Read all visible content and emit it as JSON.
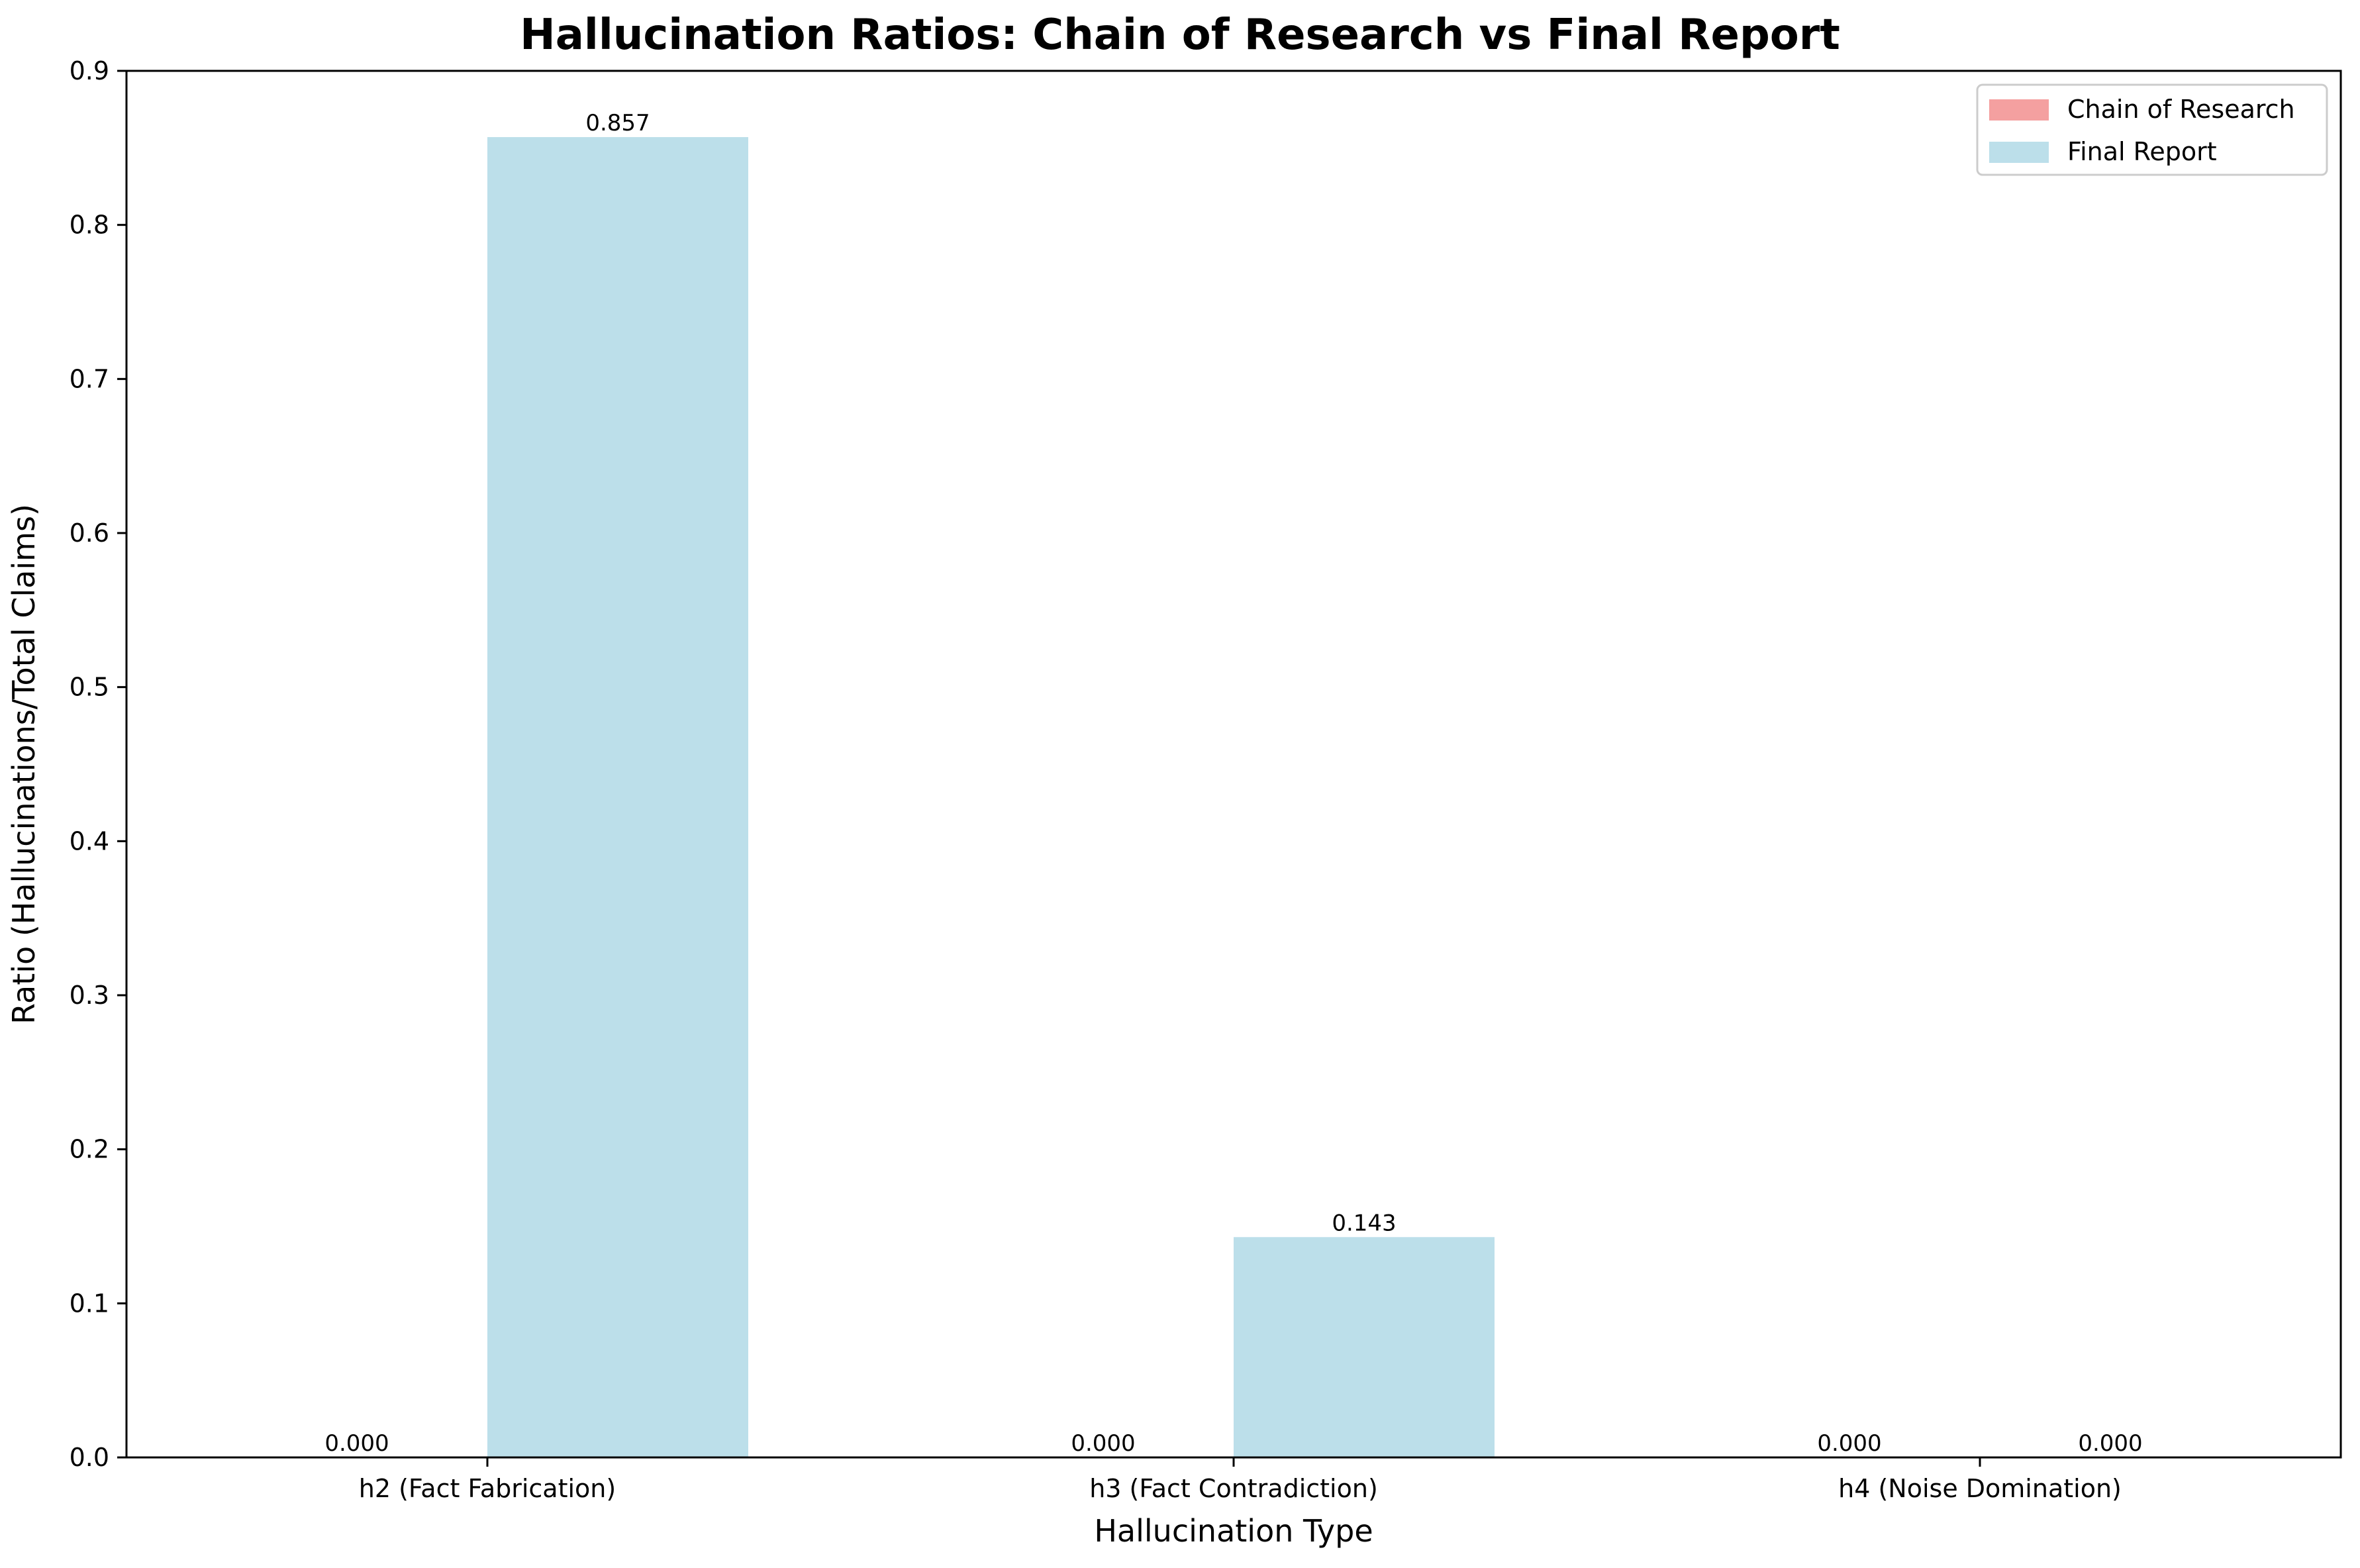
{
  "chart_data": {
    "type": "bar",
    "title": "Hallucination Ratios: Chain of Research vs Final Report",
    "xlabel": "Hallucination Type",
    "ylabel": "Ratio (Hallucinations/Total Claims)",
    "categories": [
      "h2 (Fact Fabrication)",
      "h3 (Fact Contradiction)",
      "h4 (Noise Domination)"
    ],
    "series": [
      {
        "name": "Chain of Research",
        "values": [
          0.0,
          0.0,
          0.0
        ],
        "labels": [
          "0.000",
          "0.000",
          "0.000"
        ],
        "color": "#f4a0a0"
      },
      {
        "name": "Final Report",
        "values": [
          0.857,
          0.143,
          0.0
        ],
        "labels": [
          "0.857",
          "0.143",
          "0.000"
        ],
        "color": "#bcdfea"
      }
    ],
    "ylim": [
      0,
      0.9
    ],
    "yticks": [
      "0.0",
      "0.1",
      "0.2",
      "0.3",
      "0.4",
      "0.5",
      "0.6",
      "0.7",
      "0.8",
      "0.9"
    ],
    "grid": false,
    "legend_position": "top-right"
  }
}
